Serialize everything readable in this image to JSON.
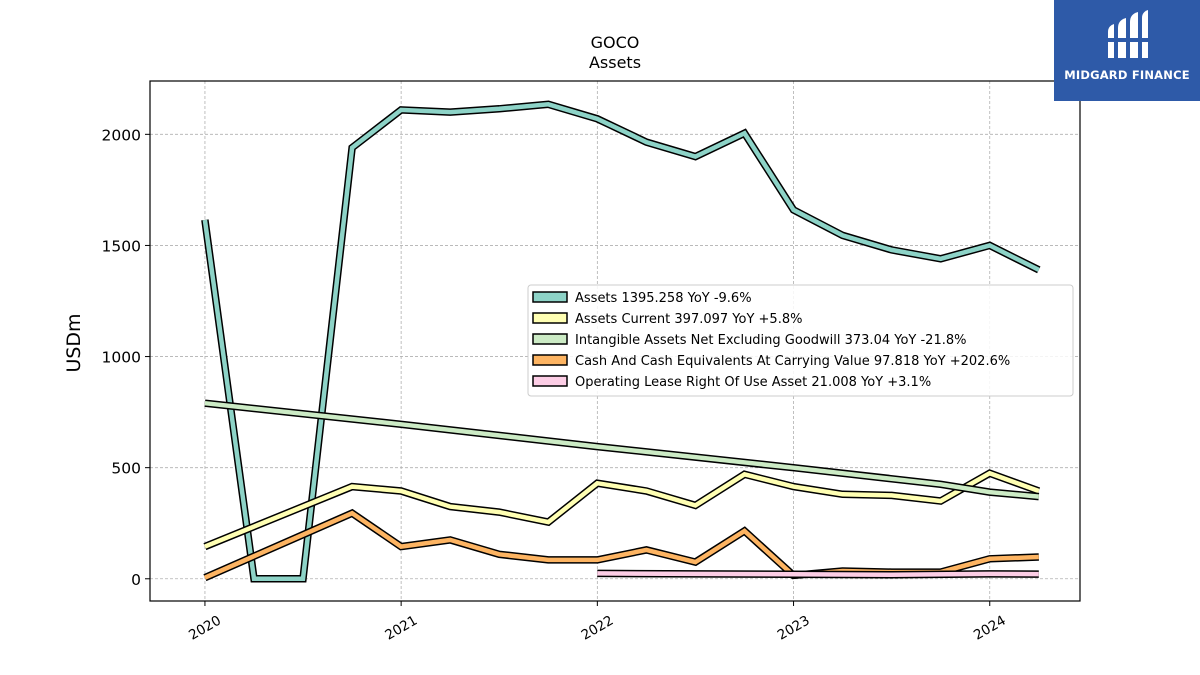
{
  "brand": {
    "name": "MIDGARD FINANCE",
    "bg_color": "#2e5aa8"
  },
  "chart_data": {
    "type": "line",
    "title": "GOCO",
    "subtitle": "Assets",
    "ylabel": "USDm",
    "xlabel": "",
    "ylim": [
      -100,
      2240
    ],
    "xlim": [
      2019.72,
      2024.46
    ],
    "yticks": [
      0,
      500,
      1000,
      1500,
      2000
    ],
    "xticks": [
      {
        "value": 2020,
        "label": "2020"
      },
      {
        "value": 2021,
        "label": "2021"
      },
      {
        "value": 2022,
        "label": "2022"
      },
      {
        "value": 2023,
        "label": "2023"
      },
      {
        "value": 2024,
        "label": "2024"
      }
    ],
    "grid": true,
    "legend_position": "center-right",
    "series": [
      {
        "name": "Assets",
        "legend": "Assets  1395.258 YoY -9.6%",
        "color": "#8dd3c7",
        "x": [
          2020.0,
          2020.25,
          2020.5,
          2020.75,
          2021.0,
          2021.25,
          2021.5,
          2021.75,
          2022.0,
          2022.25,
          2022.5,
          2022.75,
          2023.0,
          2023.25,
          2023.5,
          2023.75,
          2024.0,
          2024.25
        ],
        "y": [
          1615,
          0,
          0,
          1940,
          2110,
          2100,
          2115,
          2135,
          2070,
          1965,
          1900,
          2005,
          1660,
          1545,
          1480,
          1440,
          1500,
          1390
        ]
      },
      {
        "name": "Assets Current",
        "legend": "Assets Current  397.097 YoY +5.8%",
        "color": "#ffffb3",
        "x": [
          2020.0,
          2020.75,
          2021.0,
          2021.25,
          2021.5,
          2021.75,
          2022.0,
          2022.25,
          2022.5,
          2022.75,
          2023.0,
          2023.25,
          2023.5,
          2023.75,
          2024.0,
          2024.25
        ],
        "y": [
          145,
          415,
          395,
          325,
          300,
          255,
          430,
          395,
          330,
          470,
          415,
          380,
          375,
          350,
          475,
          395
        ]
      },
      {
        "name": "Intangible Assets Net Excluding Goodwill",
        "legend": "Intangible Assets Net Excluding Goodwill  373.04 YoY -21.8%",
        "color": "#ccebc5",
        "x": [
          2020.0,
          2021.0,
          2022.0,
          2023.0,
          2023.75,
          2024.0,
          2024.25
        ],
        "y": [
          790,
          695,
          595,
          500,
          425,
          390,
          370
        ]
      },
      {
        "name": "Cash And Cash Equivalents At Carrying Value",
        "legend": "Cash And Cash Equivalents At Carrying Value  97.818 YoY +202.6%",
        "color": "#fdb462",
        "x": [
          2020.0,
          2020.75,
          2021.0,
          2021.25,
          2021.5,
          2021.75,
          2022.0,
          2022.25,
          2022.5,
          2022.75,
          2023.0,
          2023.25,
          2023.5,
          2023.75,
          2024.0,
          2024.25
        ],
        "y": [
          5,
          295,
          145,
          175,
          110,
          85,
          85,
          130,
          75,
          215,
          15,
          35,
          30,
          30,
          90,
          98
        ]
      },
      {
        "name": "Operating Lease Right Of Use Asset",
        "legend": "Operating Lease Right Of Use Asset  21.008 YoY +3.1%",
        "color": "#fccde5",
        "x": [
          2022.0,
          2022.5,
          2023.0,
          2023.5,
          2024.0,
          2024.25
        ],
        "y": [
          24,
          22,
          20,
          18,
          22,
          21
        ]
      }
    ]
  }
}
